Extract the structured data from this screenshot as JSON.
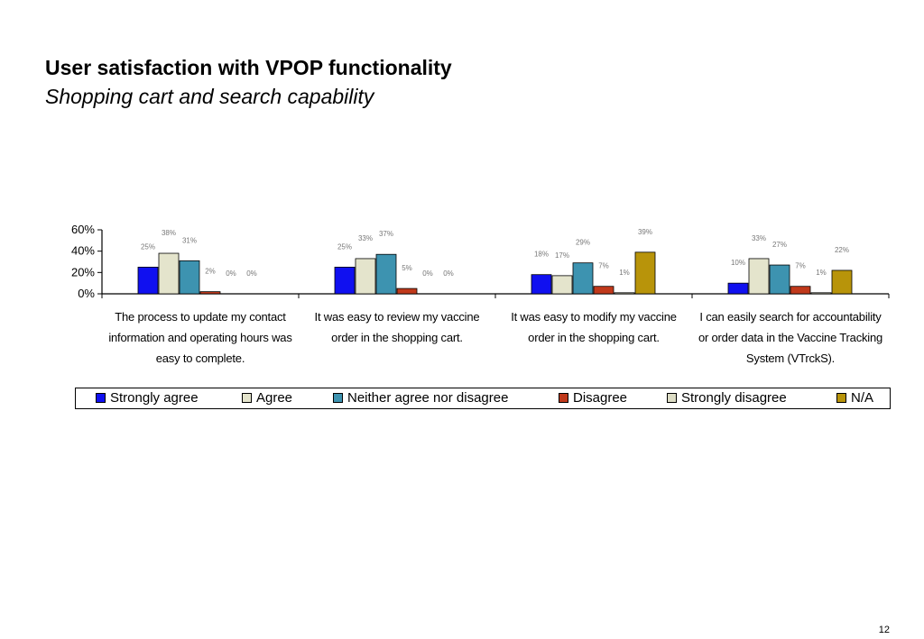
{
  "slide": {
    "title": "User satisfaction with VPOP functionality",
    "subtitle": "Shopping cart and search capability",
    "page_number": "12"
  },
  "chart_data": {
    "type": "bar",
    "categories": [
      "The process to update my contact information and operating hours was easy to complete.",
      "It was easy to review my vaccine order in the shopping cart.",
      "It was easy to modify my vaccine order in the shopping cart.",
      "I can easily search for accountability or order data in the Vaccine Tracking System (VTrckS)."
    ],
    "series": [
      {
        "name": "Strongly agree",
        "color": "#1010f0",
        "values": [
          25,
          25,
          18,
          10
        ]
      },
      {
        "name": "Agree",
        "color": "#e4e4cc",
        "values": [
          38,
          33,
          17,
          33
        ]
      },
      {
        "name": "Neither agree nor disagree",
        "color": "#3d93b0",
        "values": [
          31,
          37,
          29,
          27
        ]
      },
      {
        "name": "Disagree",
        "color": "#c0391b",
        "values": [
          2,
          5,
          7,
          7
        ]
      },
      {
        "name": "Strongly disagree",
        "color": "#dcdcc4",
        "values": [
          0,
          0,
          1,
          1
        ]
      },
      {
        "name": "N/A",
        "color": "#b8940a",
        "values": [
          0,
          0,
          39,
          22
        ]
      }
    ],
    "ylim": [
      0,
      60
    ],
    "yticks": [
      "0%",
      "20%",
      "40%",
      "60%"
    ],
    "legend_position": "bottom"
  }
}
